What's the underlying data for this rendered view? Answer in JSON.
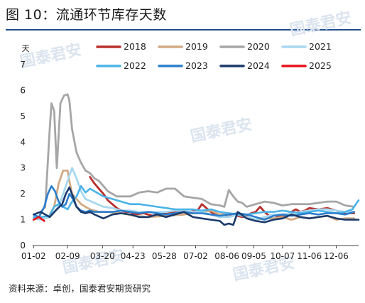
{
  "header": {
    "title": "图 10：流通环节库存天数"
  },
  "footer": {
    "source": "资料来源：卓创，国泰君安期货研究"
  },
  "watermark": {
    "text": "国泰君安"
  },
  "chart_data": {
    "type": "line",
    "ylabel": "天",
    "ylim": [
      0,
      7
    ],
    "yticks": [
      "0",
      "1",
      "2",
      "3",
      "4",
      "5",
      "6",
      "7"
    ],
    "xlim": [
      1,
      365
    ],
    "xticks": [
      {
        "label": "01-02",
        "day": 2
      },
      {
        "label": "02-09",
        "day": 40
      },
      {
        "label": "03-20",
        "day": 79
      },
      {
        "label": "04-23",
        "day": 113
      },
      {
        "label": "05-28",
        "day": 148
      },
      {
        "label": "07-02",
        "day": 183
      },
      {
        "label": "08-06",
        "day": 218
      },
      {
        "label": "09-05",
        "day": 248
      },
      {
        "label": "10-07",
        "day": 280
      },
      {
        "label": "11-06",
        "day": 310
      },
      {
        "label": "12-06",
        "day": 340
      }
    ],
    "legend_position": "top",
    "series": [
      {
        "name": "2018",
        "color": "#b8302c",
        "width": 2.8,
        "x": [
          65,
          70,
          75,
          80,
          85,
          90,
          95,
          100,
          105,
          110,
          115,
          125,
          135,
          145,
          155,
          165,
          175,
          185,
          190,
          195,
          200,
          205,
          210,
          215,
          220,
          225,
          230,
          235,
          240,
          245,
          250,
          255,
          260,
          265,
          270,
          275,
          280,
          285,
          290,
          295,
          300,
          305,
          310,
          320,
          330,
          340,
          350,
          360
        ],
        "y": [
          2.65,
          2.4,
          2.2,
          2.0,
          1.75,
          1.6,
          1.45,
          1.35,
          1.3,
          1.3,
          1.2,
          1.25,
          1.15,
          1.25,
          1.3,
          1.3,
          1.3,
          1.35,
          1.6,
          1.45,
          1.3,
          1.2,
          1.1,
          1.15,
          1.1,
          1.2,
          1.15,
          1.1,
          1.15,
          1.25,
          1.3,
          1.5,
          1.3,
          1.15,
          1.2,
          1.1,
          1.15,
          1.2,
          1.3,
          1.4,
          1.3,
          1.35,
          1.45,
          1.4,
          1.45,
          1.35,
          1.25,
          1.25
        ]
      },
      {
        "name": "2019",
        "color": "#d2aa83",
        "width": 2.8,
        "x": [
          20,
          25,
          30,
          35,
          40,
          42,
          45,
          50,
          55,
          60,
          65,
          75,
          85,
          100,
          115,
          130,
          150,
          170,
          190,
          200,
          210,
          220,
          230,
          240,
          250,
          260,
          270,
          280,
          290,
          300,
          310,
          320,
          330,
          340,
          350,
          360
        ],
        "y": [
          1.2,
          1.5,
          2.4,
          2.9,
          2.9,
          2.5,
          2.0,
          1.8,
          1.6,
          1.5,
          1.4,
          1.3,
          1.3,
          1.25,
          1.15,
          1.1,
          1.15,
          1.2,
          1.3,
          1.35,
          1.2,
          1.25,
          1.2,
          1.1,
          1.0,
          1.05,
          1.05,
          1.1,
          1.0,
          1.1,
          1.05,
          1.1,
          1.15,
          1.0,
          1.05,
          1.05
        ]
      },
      {
        "name": "2020",
        "color": "#a6a6a6",
        "width": 2.8,
        "x": [
          10,
          15,
          20,
          22,
          25,
          28,
          32,
          36,
          40,
          42,
          45,
          50,
          55,
          60,
          65,
          70,
          75,
          80,
          85,
          90,
          95,
          100,
          110,
          120,
          130,
          140,
          150,
          160,
          170,
          180,
          190,
          200,
          210,
          215,
          220,
          225,
          230,
          235,
          240,
          250,
          260,
          270,
          280,
          290,
          300,
          310,
          320,
          330,
          340,
          350,
          360
        ],
        "y": [
          1.3,
          1.5,
          4.5,
          5.5,
          5.2,
          3.0,
          5.5,
          5.8,
          5.85,
          5.6,
          4.5,
          3.6,
          3.2,
          2.9,
          2.8,
          2.6,
          2.5,
          2.3,
          2.1,
          2.0,
          1.9,
          1.9,
          1.9,
          2.05,
          2.1,
          2.05,
          2.2,
          2.2,
          1.9,
          1.85,
          1.8,
          1.6,
          1.55,
          1.5,
          2.15,
          1.9,
          1.7,
          1.65,
          1.5,
          1.6,
          1.7,
          1.65,
          1.55,
          1.6,
          1.6,
          1.6,
          1.65,
          1.7,
          1.7,
          1.55,
          1.5
        ]
      },
      {
        "name": "2021",
        "color": "#a8d8f0",
        "width": 2.8,
        "x": [
          2,
          10,
          20,
          30,
          40,
          45,
          50,
          55,
          60,
          70,
          80,
          90,
          100,
          110,
          120,
          130,
          140,
          150,
          160,
          170,
          180,
          190,
          200,
          210,
          220,
          230,
          240,
          250,
          260,
          270,
          280,
          290,
          300,
          310,
          320,
          330,
          340,
          350,
          360
        ],
        "y": [
          1.05,
          1.0,
          1.1,
          1.5,
          2.5,
          3.0,
          2.6,
          2.1,
          1.8,
          1.65,
          1.5,
          1.45,
          1.35,
          1.35,
          1.3,
          1.3,
          1.3,
          1.3,
          1.35,
          1.35,
          1.3,
          1.3,
          1.2,
          1.1,
          1.1,
          1.2,
          1.1,
          1.0,
          1.1,
          1.2,
          1.2,
          1.25,
          1.3,
          1.35,
          1.4,
          1.4,
          1.35,
          1.3,
          1.3
        ]
      },
      {
        "name": "2022",
        "color": "#4bb3e6",
        "width": 2.6,
        "x": [
          2,
          10,
          20,
          25,
          30,
          35,
          40,
          45,
          50,
          55,
          60,
          65,
          70,
          80,
          90,
          100,
          110,
          120,
          130,
          140,
          150,
          160,
          170,
          180,
          190,
          200,
          210,
          220,
          230,
          240,
          250,
          260,
          270,
          280,
          290,
          300,
          310,
          320,
          330,
          340,
          350,
          358,
          365
        ],
        "y": [
          1.1,
          1.1,
          1.15,
          1.5,
          1.6,
          1.5,
          1.4,
          1.7,
          1.9,
          2.3,
          2.05,
          2.2,
          2.1,
          1.9,
          1.8,
          1.7,
          1.6,
          1.6,
          1.55,
          1.5,
          1.45,
          1.4,
          1.4,
          1.4,
          1.35,
          1.4,
          1.3,
          1.25,
          1.2,
          1.2,
          1.25,
          1.3,
          1.3,
          1.35,
          1.3,
          1.25,
          1.3,
          1.35,
          1.3,
          1.25,
          1.3,
          1.4,
          1.75
        ]
      },
      {
        "name": "2023",
        "color": "#2a7ecc",
        "width": 2.6,
        "x": [
          2,
          8,
          14,
          18,
          22,
          26,
          30,
          34,
          38,
          42,
          46,
          50,
          55,
          60,
          65,
          70,
          80,
          90,
          100,
          110,
          120,
          130,
          140,
          150,
          160,
          170,
          180,
          190,
          200,
          210,
          220,
          230,
          240,
          250,
          260,
          270,
          280,
          290,
          300,
          310,
          320,
          330,
          340,
          350,
          360
        ],
        "y": [
          1.2,
          1.1,
          1.5,
          2.0,
          2.3,
          2.1,
          1.7,
          1.5,
          1.6,
          2.0,
          1.8,
          1.5,
          1.35,
          1.3,
          1.35,
          1.3,
          1.3,
          1.3,
          1.35,
          1.3,
          1.25,
          1.3,
          1.25,
          1.2,
          1.25,
          1.3,
          1.25,
          1.25,
          1.2,
          1.15,
          1.2,
          1.25,
          1.2,
          1.1,
          1.0,
          1.15,
          1.2,
          1.15,
          1.2,
          1.25,
          1.2,
          1.25,
          1.25,
          1.2,
          1.3
        ]
      },
      {
        "name": "2024",
        "color": "#1a3a6b",
        "width": 2.6,
        "x": [
          2,
          10,
          20,
          28,
          34,
          38,
          42,
          46,
          50,
          55,
          60,
          65,
          70,
          80,
          90,
          100,
          110,
          120,
          130,
          140,
          150,
          160,
          170,
          180,
          190,
          200,
          210,
          215,
          220,
          225,
          230,
          240,
          250,
          260,
          270,
          280,
          290,
          300,
          310,
          320,
          330,
          340,
          350,
          360,
          365
        ],
        "y": [
          1.2,
          1.3,
          1.1,
          1.4,
          1.6,
          2.0,
          2.25,
          1.9,
          1.5,
          1.3,
          1.25,
          1.3,
          1.2,
          1.05,
          1.2,
          1.25,
          1.2,
          1.1,
          1.1,
          1.2,
          1.1,
          1.2,
          1.3,
          1.1,
          1.05,
          1.0,
          0.95,
          0.8,
          0.85,
          0.8,
          1.3,
          1.05,
          0.95,
          0.9,
          1.0,
          1.05,
          1.2,
          1.1,
          1.05,
          1.1,
          1.15,
          1.05,
          1.0,
          1.0,
          1.0
        ]
      },
      {
        "name": "2025",
        "color": "#e8121c",
        "width": 2.8,
        "x": [
          2,
          8,
          14
        ],
        "y": [
          1.0,
          1.1,
          0.95
        ]
      }
    ]
  }
}
